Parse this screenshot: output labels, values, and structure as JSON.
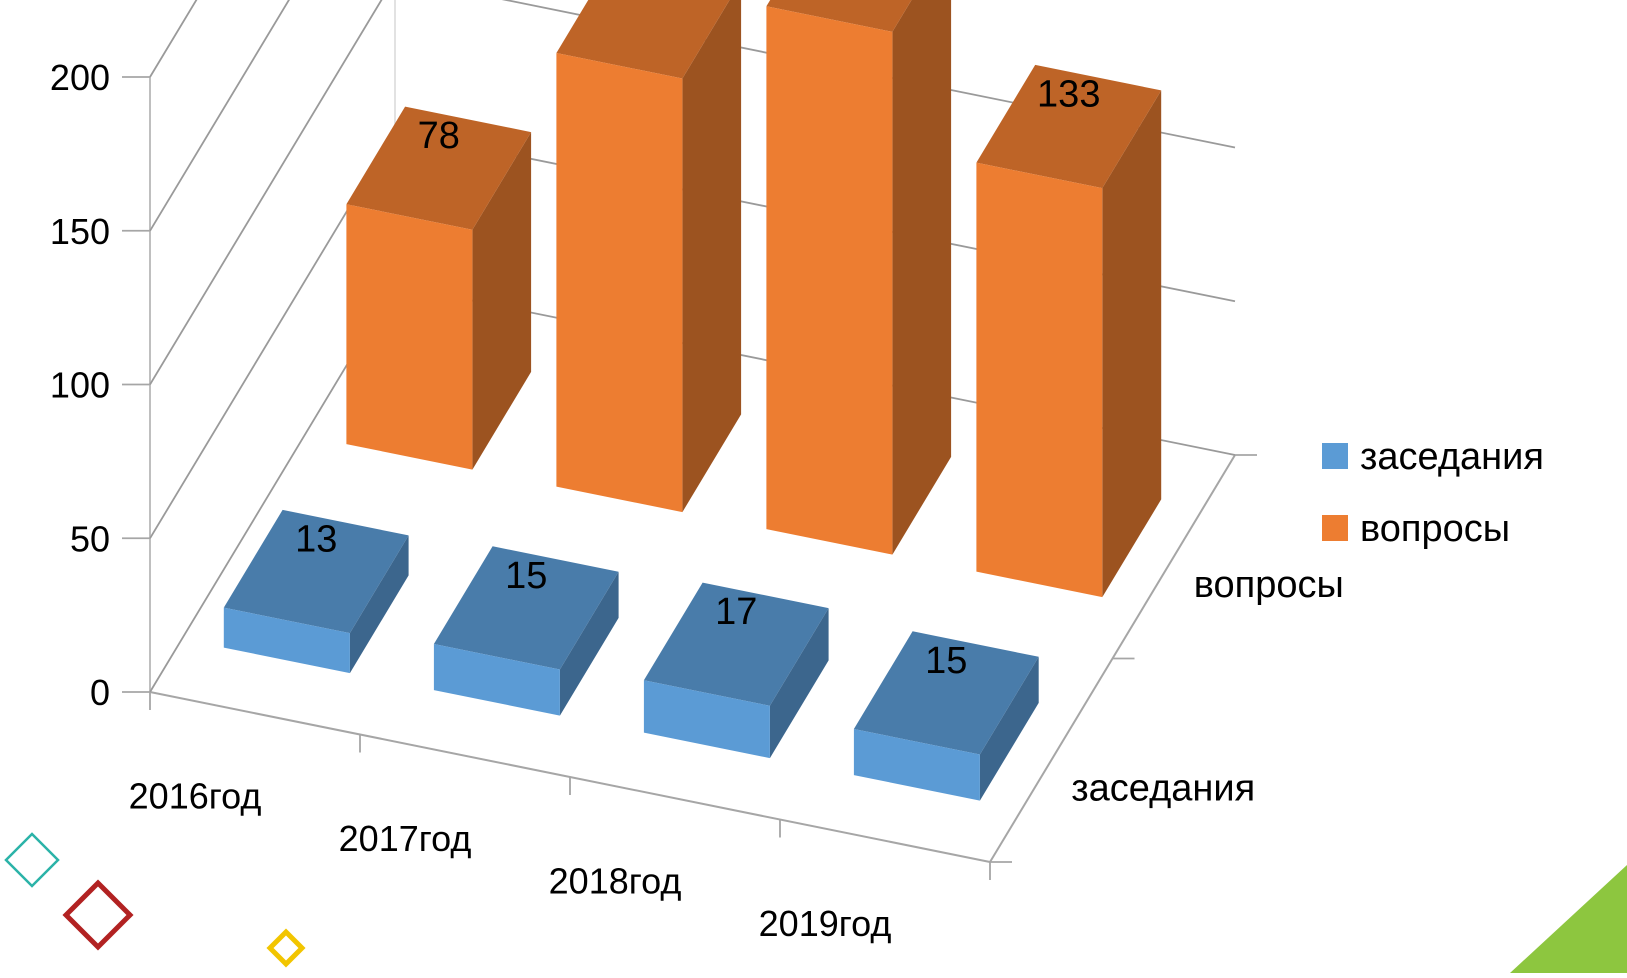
{
  "chart_data": {
    "type": "bar",
    "variant": "3d-column",
    "categories": [
      "2016год",
      "2017год",
      "2018год",
      "2019год"
    ],
    "series": [
      {
        "name": "заседания",
        "values": [
          13,
          15,
          17,
          15
        ],
        "color": "#5B9BD5"
      },
      {
        "name": "вопросы",
        "values": [
          78,
          141,
          170,
          133
        ],
        "color": "#ED7D31"
      }
    ],
    "depth_labels": [
      "вопросы",
      "заседания"
    ],
    "yticks": [
      "0",
      "50",
      "100",
      "150",
      "200"
    ],
    "ylim": [
      0,
      200
    ],
    "grid": true,
    "legend_position": "right",
    "title": "",
    "xlabel": "",
    "ylabel": "",
    "decorations": {
      "diamond_colors": [
        "#2BB3A8",
        "#B22222",
        "#F2C500"
      ],
      "corner_color": "#8DC63F"
    }
  }
}
